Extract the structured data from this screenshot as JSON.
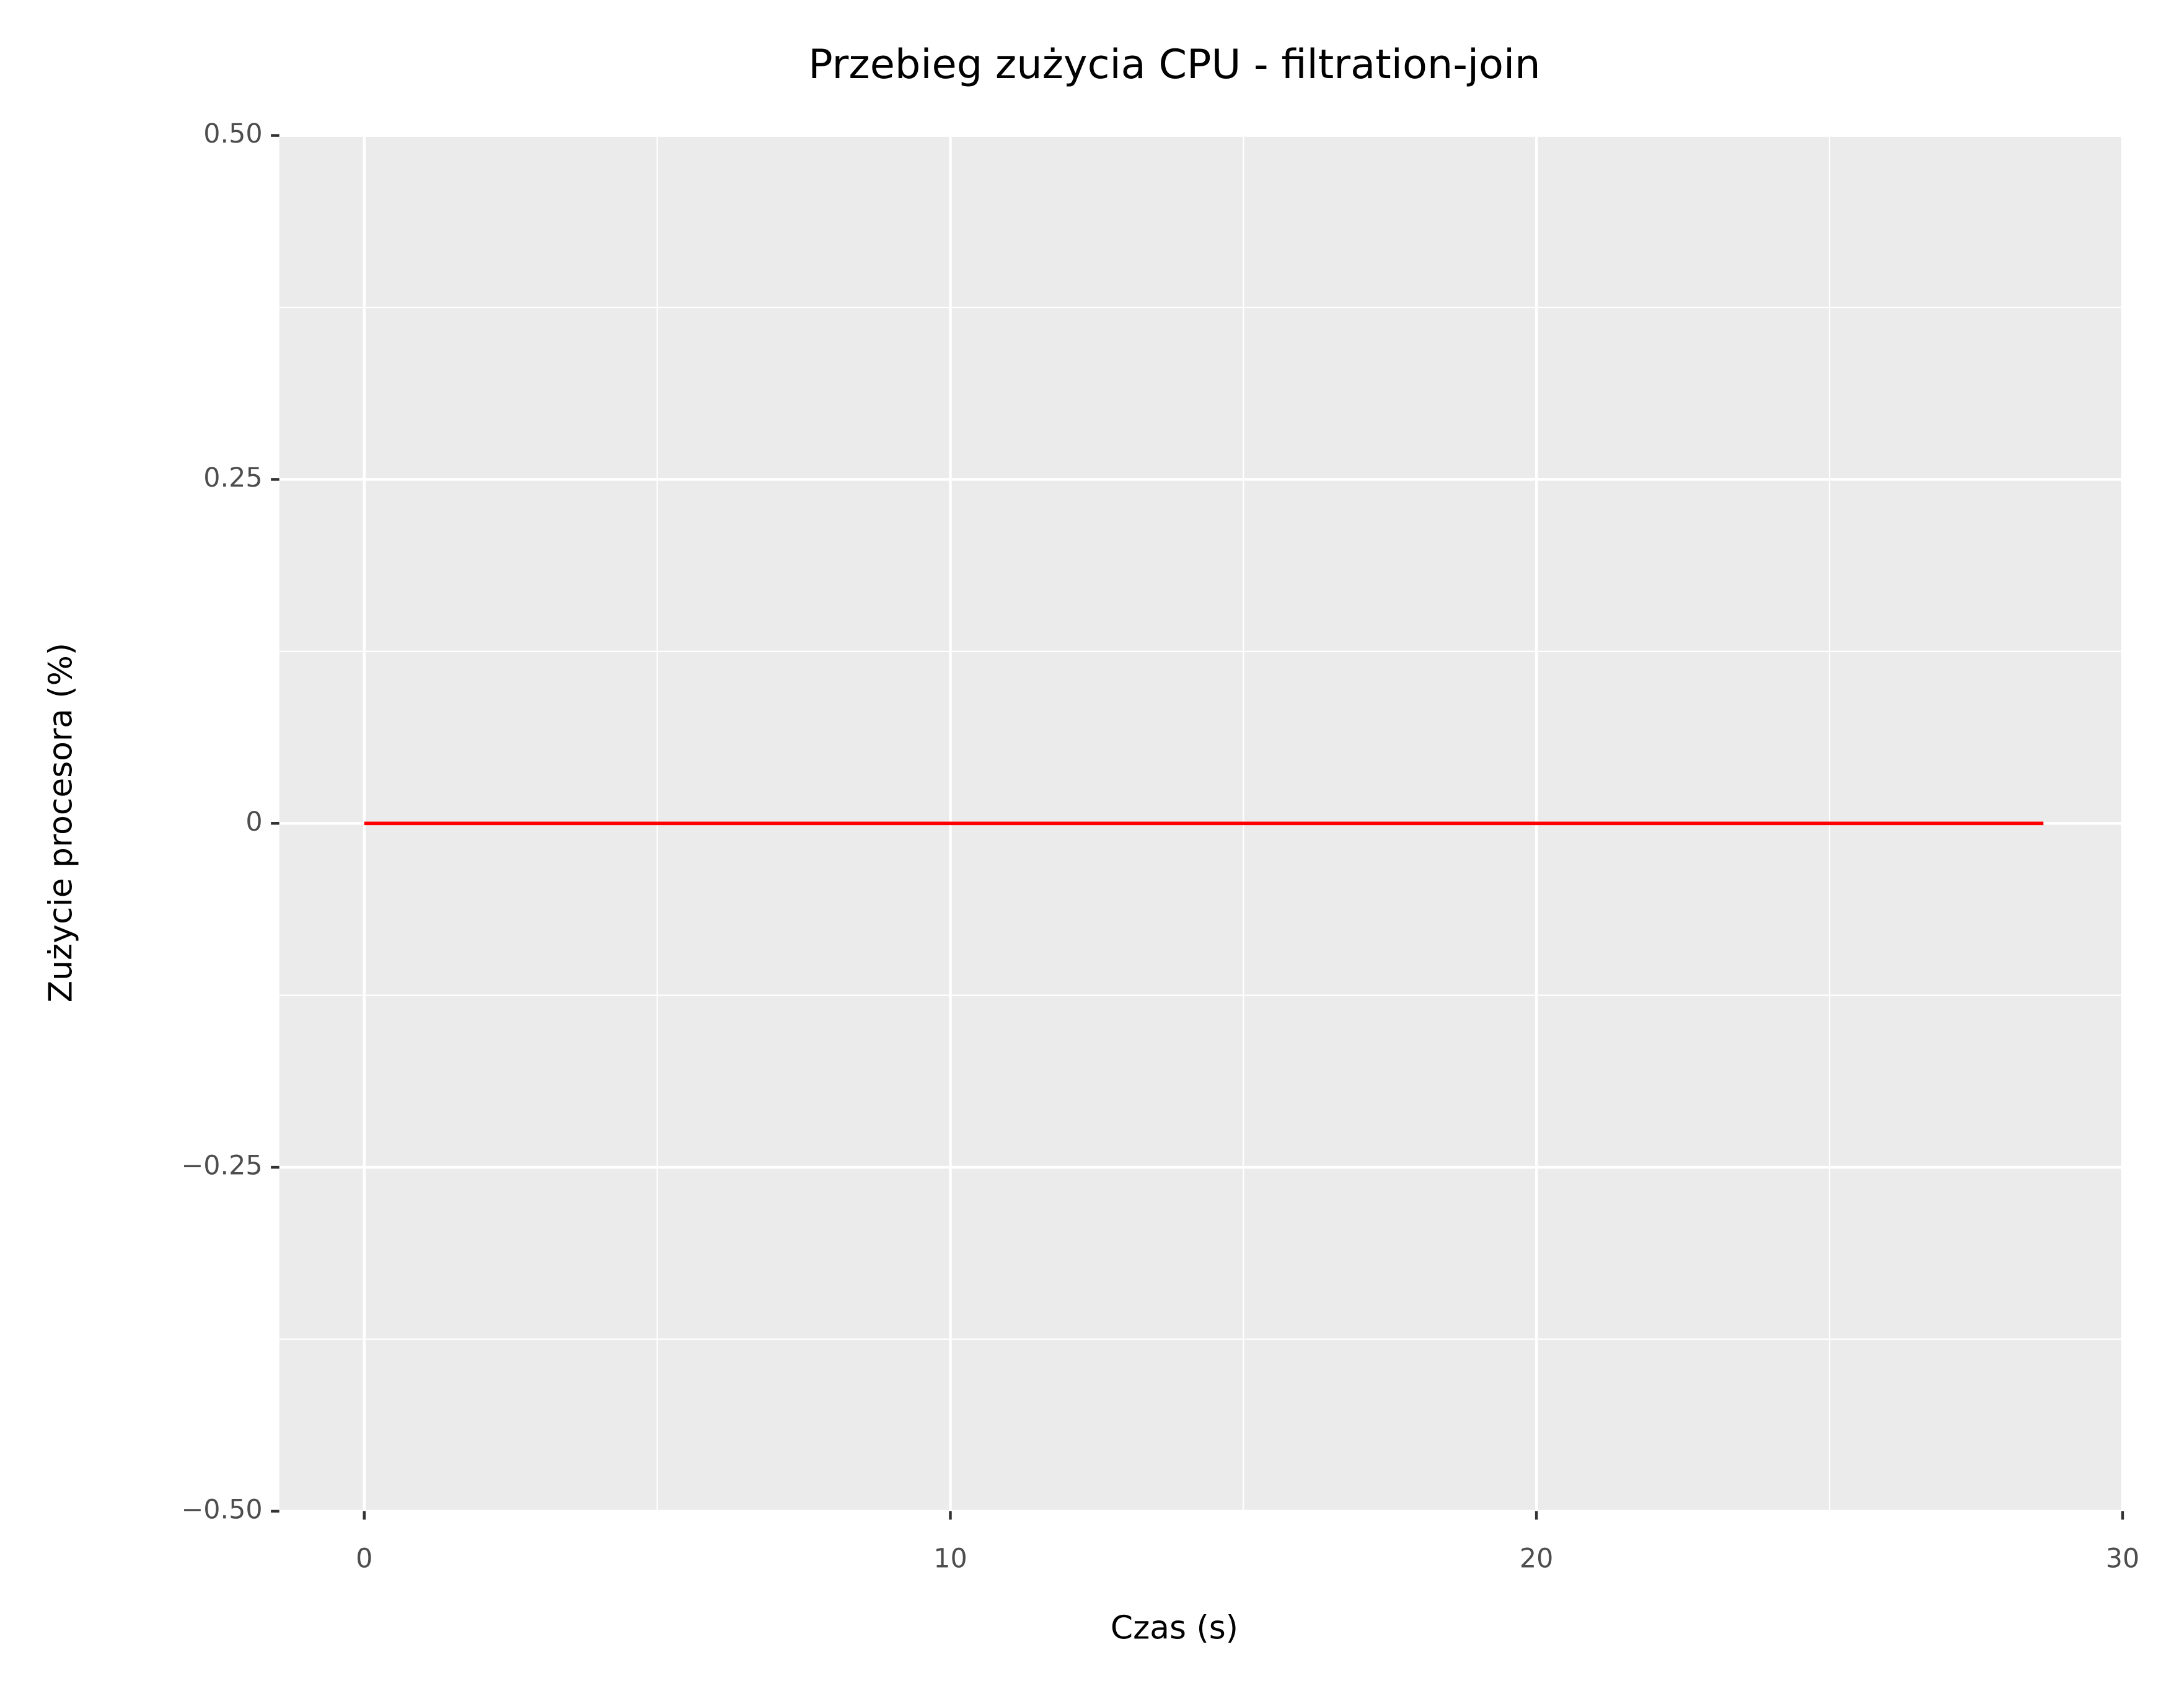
{
  "chart_data": {
    "type": "line",
    "title": "Przebieg zużycia CPU - filtration-join",
    "x_label": "Czas (s)",
    "y_label": "Zużycie procesora (%)",
    "x": [
      0,
      28.65
    ],
    "series": [
      {
        "color": "#ff0000",
        "values": [
          0,
          0
        ]
      }
    ],
    "xlim": [
      -1.45,
      30
    ],
    "xticks": [
      0,
      10,
      20,
      30
    ],
    "ylim": [
      -0.5,
      0.5
    ],
    "yticks": [
      {
        "value": -0.5,
        "label": "−0.50"
      },
      {
        "value": -0.25,
        "label": "−0.25"
      },
      0,
      {
        "value": 0.25,
        "label": "0.25"
      },
      {
        "value": 0.5,
        "label": "0.50"
      }
    ],
    "grid": true
  }
}
